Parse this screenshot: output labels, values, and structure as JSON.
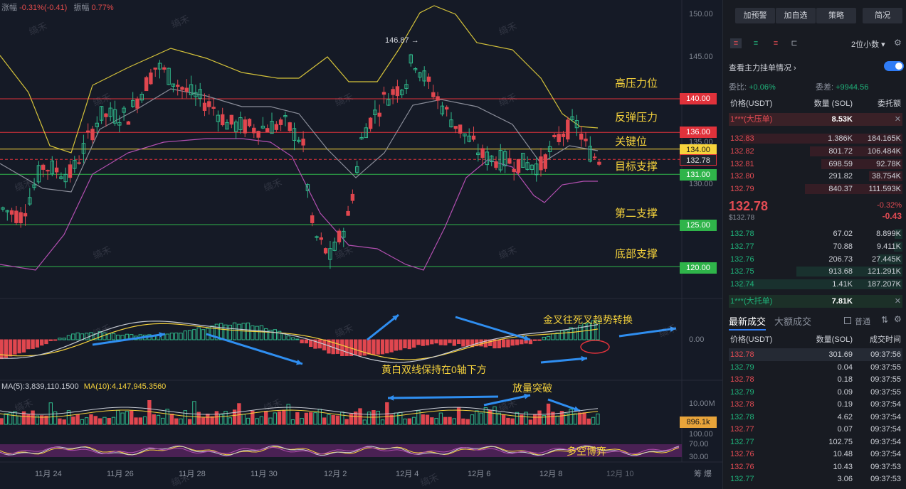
{
  "header": {
    "change_label": "涨幅",
    "change_value": "-0.31%(-0.41)",
    "amplitude_label": "振幅",
    "amplitude_value": "0.77%"
  },
  "price_axis": [
    "150.00",
    "145.00",
    "135.00",
    "130.00"
  ],
  "price_tags": [
    {
      "value": "140.00",
      "color": "#e0323b"
    },
    {
      "value": "136.00",
      "color": "#e0323b"
    },
    {
      "value": "134.00",
      "color": "#f6d33c"
    },
    {
      "value": "132.78",
      "color": "#1f232d"
    },
    {
      "value": "131.00",
      "color": "#2fb44a"
    },
    {
      "value": "125.00",
      "color": "#2fb44a"
    },
    {
      "value": "120.00",
      "color": "#2fb44a"
    }
  ],
  "zones": [
    "高压力位",
    "反弹压力",
    "关键位",
    "目标支撑",
    "第二支撑",
    "底部支撑"
  ],
  "high_marker": "146.87",
  "annotations": {
    "cross": "金叉往死叉趋势转换",
    "below_axis": "黄白双线保持在0轴下方",
    "volume": "放量突破",
    "bull_bear": "多空博弈"
  },
  "macd_axis": "0.00",
  "ma_text": {
    "ma5": "MA(5):3,839,110.1500",
    "ma10": "MA(10):4,147,945.3560"
  },
  "volume_axis": {
    "top": "10.00M",
    "current": "896.1k"
  },
  "osc_axis": [
    "100.00",
    "70.00",
    "30.00"
  ],
  "dates": [
    "11月 24",
    "11月 26",
    "11月 28",
    "11月 30",
    "12月 2",
    "12月 4",
    "12月 6",
    "12月 8",
    "12月 10"
  ],
  "corner": "筹 爆",
  "watermark": "缟禾",
  "panel": {
    "buttons": [
      "加预警",
      "加自选",
      "策略",
      "简况"
    ],
    "decimals": "2位小数",
    "order_book_title": "查看主力挂单情况",
    "weibi_label": "委比:",
    "weibi_value": "+0.06%",
    "weicha_label": "委差:",
    "weicha_value": "+9944.56",
    "cols": [
      "价格(USDT)",
      "数量 (SOL)",
      "委托额"
    ],
    "ask_big": {
      "label": "1***(大压单)",
      "value": "8.53K"
    },
    "asks": [
      {
        "p": "132.83",
        "q": "1.386K",
        "t": "184.165K"
      },
      {
        "p": "132.82",
        "q": "801.72",
        "t": "106.484K"
      },
      {
        "p": "132.81",
        "q": "698.59",
        "t": "92.78K"
      },
      {
        "p": "132.80",
        "q": "291.82",
        "t": "38.754K"
      },
      {
        "p": "132.79",
        "q": "840.37",
        "t": "111.593K"
      }
    ],
    "last_price": "132.78",
    "last_price_usd": "$132.78",
    "last_change_pct": "-0.32%",
    "last_change": "-0.43",
    "bids": [
      {
        "p": "132.78",
        "q": "67.02",
        "t": "8.899K"
      },
      {
        "p": "132.77",
        "q": "70.88",
        "t": "9.411K"
      },
      {
        "p": "132.76",
        "q": "206.73",
        "t": "27.445K"
      },
      {
        "p": "132.75",
        "q": "913.68",
        "t": "121.291K"
      },
      {
        "p": "132.74",
        "q": "1.41K",
        "t": "187.207K"
      }
    ],
    "bid_big": {
      "label": "1***(大托单)",
      "value": "7.81K"
    },
    "trade_tabs": [
      "最新成交",
      "大额成交"
    ],
    "normal_label": "普通",
    "trade_cols": [
      "价格(USDT)",
      "数量(SOL)",
      "成交时间"
    ],
    "trades": [
      {
        "p": "132.78",
        "q": "301.69",
        "t": "09:37:56",
        "side": "sell"
      },
      {
        "p": "132.79",
        "q": "0.04",
        "t": "09:37:55",
        "side": "buy"
      },
      {
        "p": "132.78",
        "q": "0.18",
        "t": "09:37:55",
        "side": "sell"
      },
      {
        "p": "132.79",
        "q": "0.09",
        "t": "09:37:55",
        "side": "buy"
      },
      {
        "p": "132.78",
        "q": "0.19",
        "t": "09:37:54",
        "side": "sell"
      },
      {
        "p": "132.78",
        "q": "4.62",
        "t": "09:37:54",
        "side": "buy"
      },
      {
        "p": "132.77",
        "q": "0.07",
        "t": "09:37:54",
        "side": "sell"
      },
      {
        "p": "132.77",
        "q": "102.75",
        "t": "09:37:54",
        "side": "buy"
      },
      {
        "p": "132.76",
        "q": "10.48",
        "t": "09:37:54",
        "side": "sell"
      },
      {
        "p": "132.76",
        "q": "10.43",
        "t": "09:37:53",
        "side": "sell"
      },
      {
        "p": "132.77",
        "q": "3.06",
        "t": "09:37:53",
        "side": "buy"
      }
    ]
  }
}
